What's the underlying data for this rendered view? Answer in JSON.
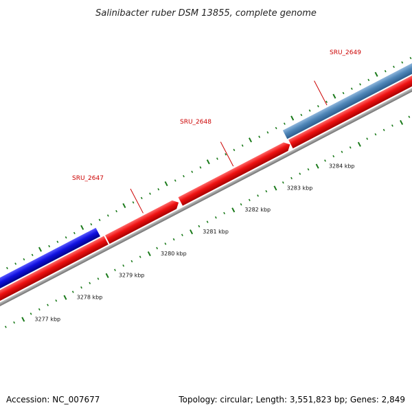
{
  "title": "Salinibacter ruber DSM 13855, complete genome",
  "footer": {
    "accession": "Accession: NC_007677",
    "summary": "Topology: circular; Length: 3,551,823 bp; Genes: 2,849"
  },
  "genes": [
    {
      "id": "SRU_2647",
      "label": "SRU_2647"
    },
    {
      "id": "SRU_2648",
      "label": "SRU_2648"
    },
    {
      "id": "SRU_2649",
      "label": "SRU_2649"
    }
  ],
  "scale_labels": [
    "3277 kbp",
    "3278 kbp",
    "3279 kbp",
    "3280 kbp",
    "3281 kbp",
    "3282 kbp",
    "3283 kbp",
    "3284 kbp"
  ],
  "colors": {
    "forward_cds": "#1010e0",
    "reverse_cds": "#ee1111",
    "other_cds": "#4f86b8",
    "backbone": "#8a8a8a",
    "ticks": "#1a7a1a",
    "label": "#cc0000"
  }
}
